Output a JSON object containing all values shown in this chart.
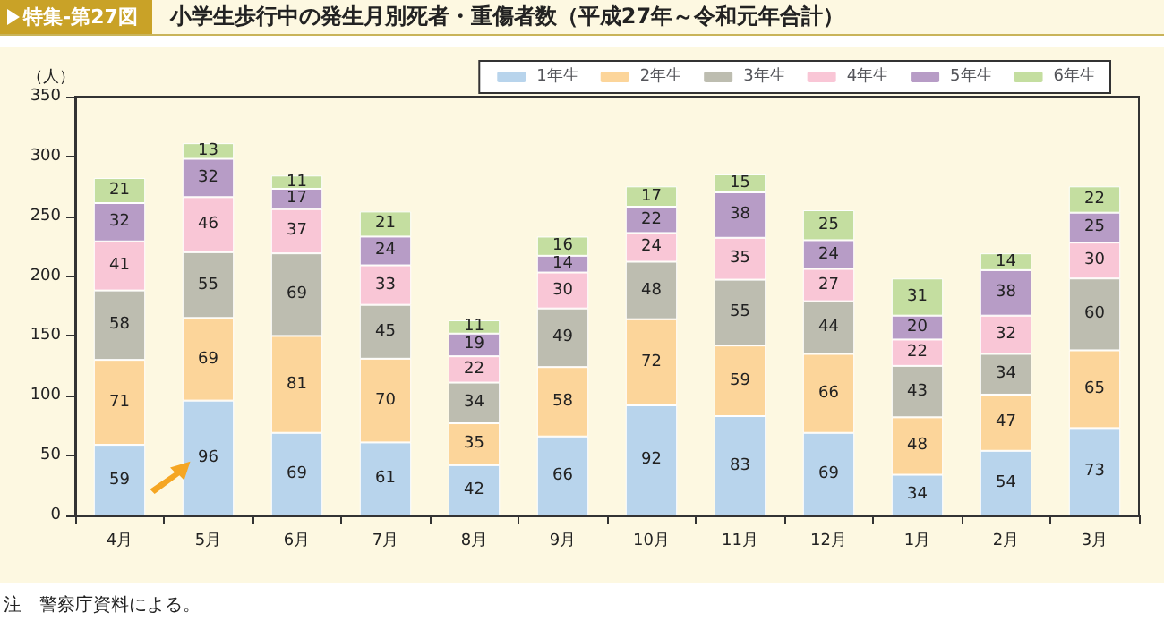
{
  "chart_data": {
    "type": "bar",
    "subtitle": "特集-第27図",
    "title": "小学生歩行中の発生月別死者・重傷者数（平成27年～令和元年合計）",
    "ylabel": "（人）",
    "annotations": [
      "注　警察庁資料による。"
    ],
    "categories": [
      "4月",
      "5月",
      "6月",
      "7月",
      "8月",
      "9月",
      "10月",
      "11月",
      "12月",
      "1月",
      "2月",
      "3月"
    ],
    "stacked": true,
    "data_labels": true,
    "legend": "top right",
    "grid": false,
    "ylim": [
      0,
      350
    ],
    "yticks": [
      0,
      50,
      100,
      150,
      200,
      250,
      300,
      350
    ],
    "series": [
      {
        "name": "1年生",
        "color": "#b8d4ec",
        "values": [
          59,
          96,
          69,
          61,
          42,
          66,
          92,
          83,
          69,
          34,
          54,
          73
        ]
      },
      {
        "name": "2年生",
        "color": "#fcd59a",
        "values": [
          71,
          69,
          81,
          70,
          35,
          58,
          72,
          59,
          66,
          48,
          47,
          65
        ]
      },
      {
        "name": "3年生",
        "color": "#bdbdb0",
        "values": [
          58,
          55,
          69,
          45,
          34,
          49,
          48,
          55,
          44,
          43,
          34,
          60
        ]
      },
      {
        "name": "4年生",
        "color": "#f9c6d6",
        "values": [
          41,
          46,
          37,
          33,
          22,
          30,
          24,
          35,
          27,
          22,
          32,
          30
        ]
      },
      {
        "name": "5年生",
        "color": "#b79cc6",
        "values": [
          32,
          32,
          17,
          24,
          19,
          14,
          22,
          38,
          24,
          20,
          38,
          25
        ]
      },
      {
        "name": "6年生",
        "color": "#c4dea0",
        "values": [
          21,
          13,
          11,
          21,
          11,
          16,
          17,
          15,
          25,
          31,
          14,
          22
        ]
      }
    ]
  }
}
